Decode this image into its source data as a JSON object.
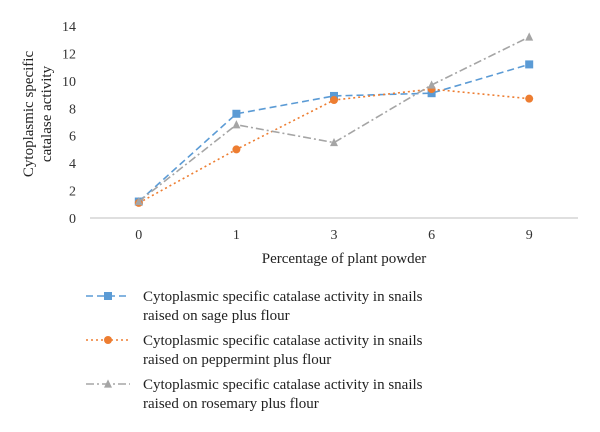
{
  "chart_data": {
    "type": "line",
    "categories": [
      "0",
      "1",
      "3",
      "6",
      "9"
    ],
    "xlabel": "Percentage of plant powder",
    "ylabel": [
      "Cytoplasmic specific",
      "catalase activity"
    ],
    "ylim": [
      0,
      14
    ],
    "yticks": [
      "0",
      "2",
      "4",
      "6",
      "8",
      "10",
      "12",
      "14"
    ],
    "grid": false,
    "legend_position": "bottom",
    "series": [
      {
        "name": [
          "Cytoplasmic specific catalase activity in snails",
          "raised on sage plus flour"
        ],
        "values": [
          1.2,
          7.6,
          8.9,
          9.1,
          11.2
        ],
        "color": "#5b9bd5",
        "marker": "square",
        "dash": "dashed"
      },
      {
        "name": [
          "Cytoplasmic specific catalase activity in snails",
          "raised on peppermint plus flour"
        ],
        "values": [
          1.1,
          5.0,
          8.6,
          9.4,
          8.7
        ],
        "color": "#ed7d31",
        "marker": "circle",
        "dash": "dotted"
      },
      {
        "name": [
          "Cytoplasmic specific catalase activity in snails",
          "raised on rosemary plus flour"
        ],
        "values": [
          1.2,
          6.8,
          5.5,
          9.7,
          13.2
        ],
        "color": "#a5a5a5",
        "marker": "triangle",
        "dash": "dashdot"
      }
    ]
  }
}
